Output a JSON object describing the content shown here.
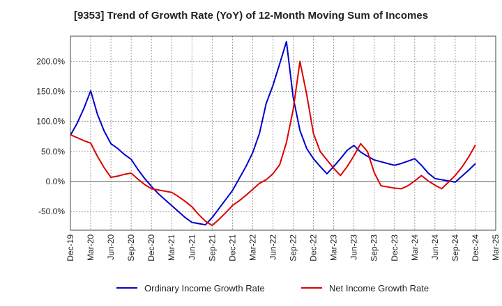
{
  "title": "[9353]  Trend of Growth Rate (YoY) of 12-Month Moving Sum of Incomes",
  "chart_data": {
    "type": "line",
    "title": "[9353]  Trend of Growth Rate (YoY) of 12-Month Moving Sum of Incomes",
    "xlabel": "",
    "ylabel": "",
    "ylim": [
      -81.0,
      242.0
    ],
    "yticks": [
      200,
      150,
      100,
      50,
      0,
      -50
    ],
    "ytick_labels": [
      "200.0%",
      "150.0%",
      "100.0%",
      "50.0%",
      "0.0%",
      "-50.0%"
    ],
    "x_tick_labels": [
      "Dec-19",
      "Mar-20",
      "Jun-20",
      "Sep-20",
      "Dec-20",
      "Mar-21",
      "Jun-21",
      "Sep-21",
      "Dec-21",
      "Mar-22",
      "Jun-22",
      "Sep-22",
      "Dec-22",
      "Mar-23",
      "Jun-23",
      "Sep-23",
      "Dec-23",
      "Mar-24",
      "Jun-24",
      "Sep-24",
      "Dec-24",
      "Mar-25"
    ],
    "x_months_span": [
      0,
      63
    ],
    "grid": true,
    "legend_position": "bottom",
    "series": [
      {
        "name": "Ordinary Income Growth Rate",
        "color": "#0000cc",
        "values": [
          77,
          97,
          122,
          151,
          112,
          84,
          63,
          55,
          45,
          37,
          20,
          5,
          -8,
          -20,
          -30,
          -40,
          -50,
          -60,
          -68,
          -70,
          -72,
          -60,
          -45,
          -30,
          -15,
          5,
          25,
          48,
          80,
          130,
          160,
          196,
          233,
          140,
          85,
          55,
          38,
          25,
          13,
          25,
          38,
          52,
          60,
          49,
          42,
          36,
          33,
          30,
          27,
          30,
          34,
          38,
          27,
          14,
          5,
          3,
          1,
          -1,
          9,
          19,
          30
        ]
      },
      {
        "name": "Net Income Growth Rate",
        "color": "#dd0000",
        "values": [
          78,
          73,
          68,
          64,
          42,
          23,
          7,
          9,
          12,
          14,
          4,
          -5,
          -12,
          -14,
          -16,
          -18,
          -25,
          -33,
          -42,
          -55,
          -66,
          -73,
          -63,
          -52,
          -40,
          -32,
          -23,
          -13,
          -3,
          3,
          13,
          28,
          65,
          120,
          200,
          145,
          80,
          50,
          36,
          22,
          10,
          25,
          43,
          63,
          50,
          15,
          -7,
          -9,
          -11,
          -12,
          -7,
          1,
          10,
          1,
          -6,
          -12,
          -1,
          10,
          24,
          41,
          61
        ]
      }
    ]
  }
}
